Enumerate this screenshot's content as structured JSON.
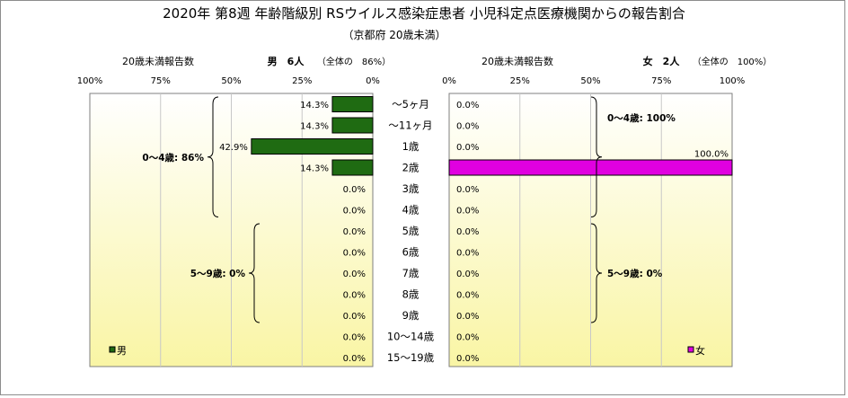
{
  "title": "2020年 第8週 年齢階級別 RSウイルス感染症患者 小児科定点医療機関からの報告割合",
  "subtitle": "（京都府 20歳未満）",
  "colors": {
    "male": "#1f6b12",
    "female": "#e000e0",
    "plot_bg_top": "#ffffff",
    "plot_bg_bottom": "#f9f5a4",
    "grid": "#c8c8c8"
  },
  "chart_data": [
    {
      "type": "bar",
      "orientation": "horizontal",
      "direction": "leftward",
      "panel_label": "20歳未満報告数",
      "header_label": "男　6人",
      "header_note": "（全体の　86%）",
      "xlim": [
        0,
        100
      ],
      "ticks": [
        "100%",
        "75%",
        "50%",
        "25%",
        "0%"
      ],
      "grid": true,
      "legend": "男",
      "categories": [
        "～5ヶ月",
        "～11ヶ月",
        "1歳",
        "2歳",
        "3歳",
        "4歳",
        "5歳",
        "6歳",
        "7歳",
        "8歳",
        "9歳",
        "10～14歳",
        "15～19歳"
      ],
      "values": [
        14.3,
        14.3,
        42.9,
        14.3,
        0.0,
        0.0,
        0.0,
        0.0,
        0.0,
        0.0,
        0.0,
        0.0,
        0.0
      ],
      "value_labels": [
        "14.3%",
        "14.3%",
        "42.9%",
        "14.3%",
        "0.0%",
        "0.0%",
        "0.0%",
        "0.0%",
        "0.0%",
        "0.0%",
        "0.0%",
        "0.0%",
        "0.0%"
      ],
      "groups": [
        {
          "label": "0～4歳: 86%",
          "from": 0,
          "to": 5
        },
        {
          "label": "5～9歳: 0%",
          "from": 6,
          "to": 10
        }
      ]
    },
    {
      "type": "bar",
      "orientation": "horizontal",
      "direction": "rightward",
      "panel_label": "20歳未満報告数",
      "header_label": "女　2人",
      "header_note": "（全体の　100%）",
      "xlim": [
        0,
        100
      ],
      "ticks": [
        "0%",
        "25%",
        "50%",
        "75%",
        "100%"
      ],
      "grid": true,
      "legend": "女",
      "categories": [
        "～5ヶ月",
        "～11ヶ月",
        "1歳",
        "2歳",
        "3歳",
        "4歳",
        "5歳",
        "6歳",
        "7歳",
        "8歳",
        "9歳",
        "10～14歳",
        "15～19歳"
      ],
      "values": [
        0.0,
        0.0,
        0.0,
        100.0,
        0.0,
        0.0,
        0.0,
        0.0,
        0.0,
        0.0,
        0.0,
        0.0,
        0.0
      ],
      "value_labels": [
        "0.0%",
        "0.0%",
        "0.0%",
        "100.0%",
        "0.0%",
        "0.0%",
        "0.0%",
        "0.0%",
        "0.0%",
        "0.0%",
        "0.0%",
        "0.0%",
        "0.0%"
      ],
      "groups": [
        {
          "label": "0～4歳: 100%",
          "from": 0,
          "to": 5
        },
        {
          "label": "5～9歳: 0%",
          "from": 6,
          "to": 10
        }
      ]
    }
  ]
}
